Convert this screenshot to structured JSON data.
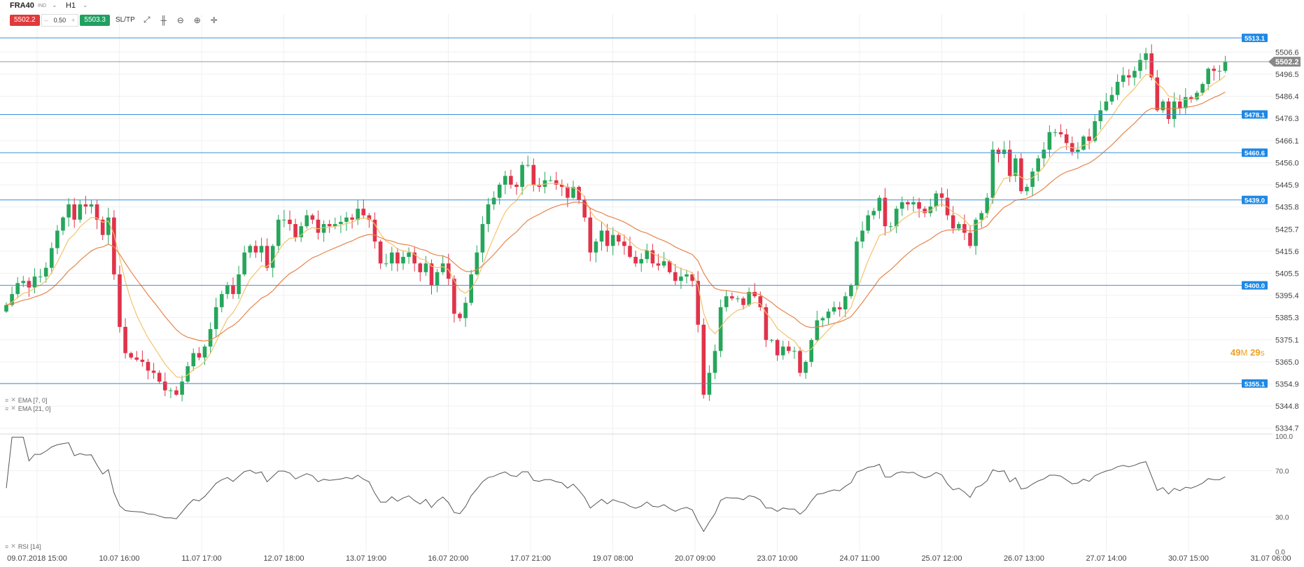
{
  "header": {
    "symbol": "FRA40",
    "symbol_tag": "IND",
    "timeframe": "H1",
    "sell_price": "5502.2",
    "spread": "0.50",
    "buy_price": "5503.3",
    "sl_tp_label": "SL/TP",
    "quantity_minus": "–",
    "quantity_plus": "+"
  },
  "toolbar_icons": [
    "trend-line-icon",
    "candle-type-icon",
    "zoom-out-icon",
    "zoom-in-icon",
    "crosshair-icon"
  ],
  "colors": {
    "bull": "#26a65b",
    "bear": "#e0334a",
    "ema7": "#f5c26b",
    "ema21": "#e8844a",
    "level_line": "#3a8fd6",
    "level_label_bg": "#1e88e5",
    "price_label_bg": "#888888",
    "rsi_line": "#555555",
    "timer": "#f0a020"
  },
  "timer": {
    "minutes": "49",
    "m_unit": "M",
    "seconds": "29",
    "s_unit": "s"
  },
  "current_price_label": "5502.2",
  "levels": [
    {
      "value": 5513.1,
      "label": "5513.1"
    },
    {
      "value": 5478.1,
      "label": "5478.1"
    },
    {
      "value": 5460.6,
      "label": "5460.6"
    },
    {
      "value": 5439.0,
      "label": "5439.0"
    },
    {
      "value": 5400.0,
      "label": "5400.0"
    },
    {
      "value": 5355.1,
      "label": "5355.1"
    }
  ],
  "indicators": {
    "ema7_label": "EMA [7, 0]",
    "ema21_label": "EMA [21, 0]",
    "rsi_label": "RSI [14]"
  },
  "chart_data": [
    {
      "type": "candlestick",
      "price_axis_ticks": [
        "5506.6",
        "5496.5",
        "5486.4",
        "5476.3",
        "5466.1",
        "5456.0",
        "5445.9",
        "5435.8",
        "5425.7",
        "5415.6",
        "5405.5",
        "5395.4",
        "5385.3",
        "5375.1",
        "5365.0",
        "5354.9",
        "5344.8",
        "5334.7"
      ],
      "ylim": [
        5333.0,
        5524.0
      ],
      "time_axis_labels": [
        "09.07.2018 15:00",
        "10.07 16:00",
        "11.07 17:00",
        "12.07 18:00",
        "13.07 19:00",
        "16.07 20:00",
        "17.07 21:00",
        "19.07 08:00",
        "20.07 09:00",
        "23.07 10:00",
        "24.07 11:00",
        "25.07 12:00",
        "26.07 13:00",
        "27.07 14:00",
        "30.07 15:00",
        "31.07 06:00"
      ],
      "closes": [
        5391,
        5396,
        5401,
        5402,
        5399,
        5404,
        5404,
        5408,
        5417,
        5425,
        5431,
        5437,
        5430,
        5437,
        5436,
        5437,
        5430,
        5423,
        5431,
        5405,
        5381,
        5369,
        5367,
        5366,
        5365,
        5361,
        5360,
        5356,
        5352,
        5352,
        5350,
        5356,
        5363,
        5369,
        5367,
        5372,
        5380,
        5390,
        5396,
        5400,
        5396,
        5405,
        5415,
        5418,
        5415,
        5418,
        5408,
        5418,
        5430,
        5430,
        5428,
        5422,
        5427,
        5432,
        5430,
        5424,
        5428,
        5427,
        5428,
        5429,
        5431,
        5430,
        5435,
        5432,
        5430,
        5420,
        5410,
        5410,
        5415,
        5410,
        5413,
        5415,
        5410,
        5406,
        5410,
        5400,
        5406,
        5410,
        5403,
        5387,
        5385,
        5392,
        5405,
        5415,
        5428,
        5437,
        5440,
        5446,
        5450,
        5446,
        5445,
        5455,
        5455,
        5446,
        5445,
        5448,
        5448,
        5446,
        5445,
        5440,
        5445,
        5439,
        5431,
        5415,
        5420,
        5425,
        5418,
        5423,
        5420,
        5418,
        5413,
        5410,
        5412,
        5416,
        5410,
        5409,
        5411,
        5406,
        5402,
        5404,
        5405,
        5402,
        5382,
        5350,
        5360,
        5370,
        5390,
        5395,
        5394,
        5394,
        5391,
        5397,
        5395,
        5390,
        5375,
        5375,
        5368,
        5372,
        5370,
        5370,
        5360,
        5365,
        5375,
        5384,
        5385,
        5388,
        5390,
        5389,
        5395,
        5400,
        5420,
        5425,
        5432,
        5434,
        5440,
        5427,
        5427,
        5435,
        5438,
        5437,
        5438,
        5435,
        5433,
        5436,
        5442,
        5440,
        5432,
        5426,
        5428,
        5424,
        5418,
        5430,
        5433,
        5440,
        5462,
        5460,
        5462,
        5450,
        5458,
        5443,
        5445,
        5452,
        5458,
        5462,
        5470,
        5470,
        5469,
        5465,
        5461,
        5462,
        5468,
        5466,
        5475,
        5480,
        5484,
        5487,
        5493,
        5496,
        5495,
        5498,
        5503,
        5506,
        5495,
        5480,
        5484,
        5476,
        5484,
        5481,
        5486,
        5485,
        5488,
        5492,
        5499,
        5498,
        5498,
        5502.2
      ]
    },
    {
      "type": "line",
      "name": "RSI [14]",
      "y_axis_ticks": [
        "100.0",
        "70.0",
        "30.0",
        "0.0"
      ],
      "ylim": [
        0,
        100
      ]
    }
  ]
}
